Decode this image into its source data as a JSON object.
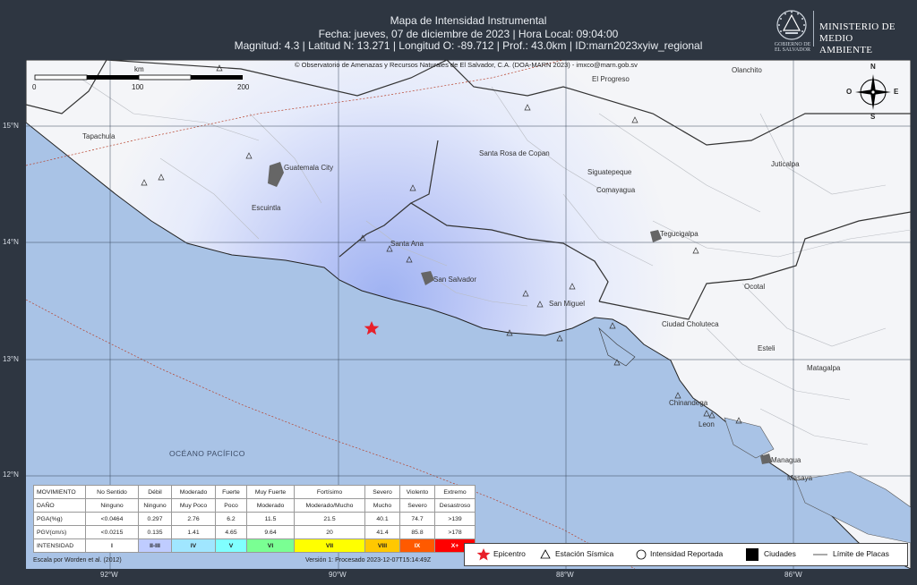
{
  "header": {
    "title": "Mapa de Intensidad Instrumental",
    "line2": "Fecha: jueves, 07 de diciembre de 2023 | Hora Local: 09:04:00",
    "line3": "Magnitud: 4.3 | Latitud N: 13.271 | Longitud O: -89.712 | Prof.: 43.0km | ID:marn2023xyiw_regional"
  },
  "logo": {
    "ministry_line1": "MINISTERIO DE",
    "ministry_line2": "MEDIO AMBIENTE",
    "gob_line1": "GOBIERNO DE",
    "gob_line2": "EL SALVADOR"
  },
  "map": {
    "copyright": "© Observatorio de Amenazas y Recursos Naturales de El Salvador, C.A. (DOA-MARN 2023) - imxco@marn.gob.sv",
    "scale": {
      "unit": "km",
      "ticks": [
        "0",
        "100",
        "200"
      ]
    },
    "compass": {
      "n": "N",
      "s": "S",
      "e": "E",
      "o": "O"
    },
    "ocean_label": "OCÉANO PACÍFICO",
    "lat_labels": [
      "15°N",
      "14°N",
      "13°N",
      "12°N"
    ],
    "lon_labels": [
      "92°W",
      "90°W",
      "88°W",
      "86°W"
    ],
    "cities": {
      "tapachula": "Tapachula",
      "guatemala": "Guatemala City",
      "escuintla": "Escuintla",
      "santa_rosa": "Santa Rosa de Copan",
      "siguatepeque": "Siguatepeque",
      "comayagua": "Comayagua",
      "el_progreso": "El Progreso",
      "olanchito": "Olanchito",
      "juticalpa": "Juticalpa",
      "tegucigalpa": "Tegucigalpa",
      "santa_ana": "Santa Ana",
      "san_salvador": "San Salvador",
      "san_miguel": "San Miguel",
      "ocotal": "Ocotal",
      "choluteca": "Ciudad Choluteca",
      "esteli": "Esteli",
      "matagalpa": "Matagalpa",
      "chinandega": "Chinandega",
      "leon": "Leon",
      "managua": "Managua",
      "masaya": "Masaya"
    },
    "epicenter": {
      "lat": 13.271,
      "lon": -89.712,
      "color": "#e8202a"
    }
  },
  "intensity_table": {
    "rows": [
      {
        "head": "MOVIMIENTO",
        "cells": [
          "No Sentido",
          "Débil",
          "Moderado",
          "Fuerte",
          "Muy Fuerte",
          "Fortísimo",
          "Severo",
          "Violento",
          "Extremo"
        ]
      },
      {
        "head": "DAÑO",
        "cells": [
          "Ninguno",
          "Ninguno",
          "Muy Poco",
          "Poco",
          "Moderado",
          "Moderado/Mucho",
          "Mucho",
          "Severo",
          "Desastroso"
        ]
      },
      {
        "head": "PGA(%g)",
        "cells": [
          "<0.0464",
          "0.297",
          "2.76",
          "6.2",
          "11.5",
          "21.5",
          "40.1",
          "74.7",
          ">139"
        ]
      },
      {
        "head": "PGV(cm/s)",
        "cells": [
          "<0.0215",
          "0.135",
          "1.41",
          "4.65",
          "9.64",
          "20",
          "41.4",
          "85.8",
          ">178"
        ]
      },
      {
        "head": "INTENSIDAD",
        "cells": [
          "I",
          "II-III",
          "IV",
          "V",
          "VI",
          "VII",
          "VIII",
          "IX",
          "X+"
        ]
      }
    ],
    "intensity_colors": [
      "#ffffff",
      "#bfccff",
      "#a0e6ff",
      "#80ffff",
      "#7aff93",
      "#ffff00",
      "#ffc800",
      "#ff5a00",
      "#ff0000"
    ]
  },
  "footer": {
    "scale_source": "Escala por Worden et al. (2012)",
    "version": "Versión 1: Procesado 2023-12-07T15:14:49Z"
  },
  "legend": {
    "epicenter": "Epicentro",
    "station": "Estación Sísmica",
    "reported": "Intensidad Reportada",
    "cities": "Ciudades",
    "plates": "Límite de Placas"
  }
}
